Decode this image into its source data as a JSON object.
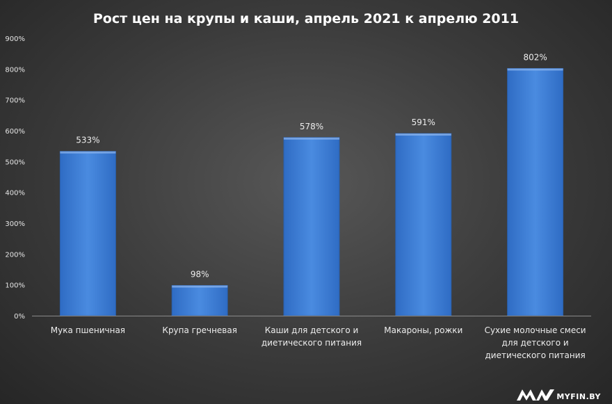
{
  "chart_data": {
    "type": "bar",
    "title": "Рост цен на крупы и каши, апрель 2021 к апрелю 2011",
    "categories": [
      [
        "Мука пшеничная"
      ],
      [
        "Крупа гречневая"
      ],
      [
        "Каши для детского и",
        "диетического питания"
      ],
      [
        "Макароны, рожки"
      ],
      [
        "Сухие молочные смеси",
        "для детского и",
        "диетического питания"
      ]
    ],
    "values": [
      533,
      98,
      578,
      591,
      802
    ],
    "value_labels": [
      "533%",
      "98%",
      "578%",
      "591%",
      "802%"
    ],
    "ylim": [
      0,
      900
    ],
    "yticks": [
      0,
      100,
      200,
      300,
      400,
      500,
      600,
      700,
      800,
      900
    ],
    "ytick_labels": [
      "0%",
      "100%",
      "200%",
      "300%",
      "400%",
      "500%",
      "600%",
      "700%",
      "800%",
      "900%"
    ],
    "grid": false,
    "bar_color": "#3f7fd6",
    "background_color": "#3a3a3a"
  },
  "watermark": {
    "text": "MYFIN.BY"
  }
}
